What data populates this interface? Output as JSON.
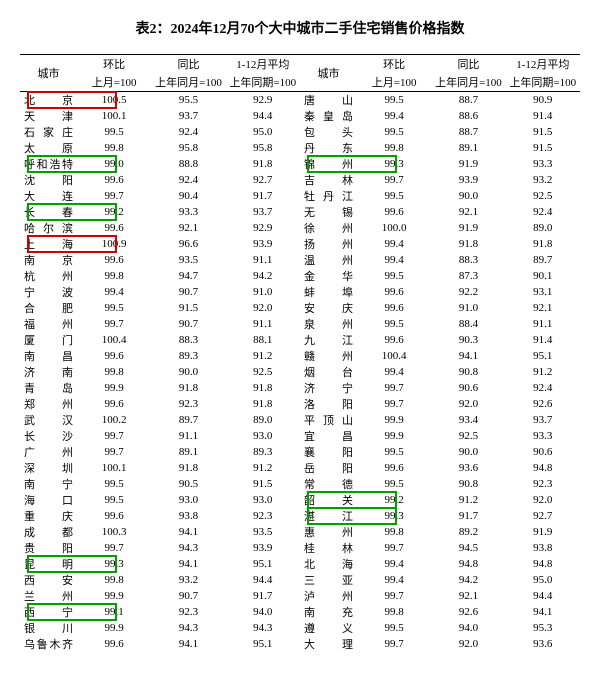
{
  "title": "表2：2024年12月70个大中城市二手住宅销售价格指数",
  "headers": {
    "city": "城市",
    "mom": "环比",
    "yoy": "同比",
    "avg": "1-12月平均",
    "mom_sub": "上月=100",
    "yoy_sub": "上年同月=100",
    "avg_sub": "上年同期=100"
  },
  "rows": [
    {
      "l": {
        "city": "北　京",
        "mom": "100.5",
        "yoy": "95.5",
        "avg": "92.9",
        "hl": "red"
      },
      "r": {
        "city": "唐　山",
        "mom": "99.5",
        "yoy": "88.7",
        "avg": "90.9"
      }
    },
    {
      "l": {
        "city": "天　津",
        "mom": "100.1",
        "yoy": "93.7",
        "avg": "94.4"
      },
      "r": {
        "city": "秦皇岛",
        "mom": "99.4",
        "yoy": "88.6",
        "avg": "91.4"
      }
    },
    {
      "l": {
        "city": "石家庄",
        "mom": "99.5",
        "yoy": "92.4",
        "avg": "95.0"
      },
      "r": {
        "city": "包　头",
        "mom": "99.5",
        "yoy": "88.7",
        "avg": "91.5"
      }
    },
    {
      "l": {
        "city": "太　原",
        "mom": "99.8",
        "yoy": "95.8",
        "avg": "95.8"
      },
      "r": {
        "city": "丹　东",
        "mom": "99.8",
        "yoy": "89.1",
        "avg": "91.5"
      }
    },
    {
      "l": {
        "city": "呼和浩特",
        "mom": "99.0",
        "yoy": "88.8",
        "avg": "91.8",
        "hl": "green"
      },
      "r": {
        "city": "锦　州",
        "mom": "99.3",
        "yoy": "91.9",
        "avg": "93.3",
        "hl": "green"
      }
    },
    {
      "l": {
        "city": "沈　阳",
        "mom": "99.6",
        "yoy": "92.4",
        "avg": "92.7"
      },
      "r": {
        "city": "吉　林",
        "mom": "99.7",
        "yoy": "93.9",
        "avg": "93.2"
      }
    },
    {
      "l": {
        "city": "大　连",
        "mom": "99.7",
        "yoy": "90.4",
        "avg": "91.7"
      },
      "r": {
        "city": "牡丹江",
        "mom": "99.5",
        "yoy": "90.0",
        "avg": "92.5"
      }
    },
    {
      "l": {
        "city": "长　春",
        "mom": "99.2",
        "yoy": "93.3",
        "avg": "93.7",
        "hl": "green"
      },
      "r": {
        "city": "无　锡",
        "mom": "99.6",
        "yoy": "92.1",
        "avg": "92.4"
      }
    },
    {
      "l": {
        "city": "哈尔滨",
        "mom": "99.6",
        "yoy": "92.1",
        "avg": "92.9"
      },
      "r": {
        "city": "徐　州",
        "mom": "100.0",
        "yoy": "91.9",
        "avg": "89.0"
      }
    },
    {
      "l": {
        "city": "上　海",
        "mom": "100.9",
        "yoy": "96.6",
        "avg": "93.9",
        "hl": "red"
      },
      "r": {
        "city": "扬　州",
        "mom": "99.4",
        "yoy": "91.8",
        "avg": "91.8"
      }
    },
    {
      "l": {
        "city": "南　京",
        "mom": "99.6",
        "yoy": "93.5",
        "avg": "91.1"
      },
      "r": {
        "city": "温　州",
        "mom": "99.4",
        "yoy": "88.3",
        "avg": "89.7"
      }
    },
    {
      "l": {
        "city": "杭　州",
        "mom": "99.8",
        "yoy": "94.7",
        "avg": "94.2"
      },
      "r": {
        "city": "金　华",
        "mom": "99.5",
        "yoy": "87.3",
        "avg": "90.1"
      }
    },
    {
      "l": {
        "city": "宁　波",
        "mom": "99.4",
        "yoy": "90.7",
        "avg": "91.0"
      },
      "r": {
        "city": "蚌　埠",
        "mom": "99.6",
        "yoy": "92.2",
        "avg": "93.1"
      }
    },
    {
      "l": {
        "city": "合　肥",
        "mom": "99.5",
        "yoy": "91.5",
        "avg": "92.0"
      },
      "r": {
        "city": "安　庆",
        "mom": "99.6",
        "yoy": "91.0",
        "avg": "92.1"
      }
    },
    {
      "l": {
        "city": "福　州",
        "mom": "99.7",
        "yoy": "90.7",
        "avg": "91.1"
      },
      "r": {
        "city": "泉　州",
        "mom": "99.5",
        "yoy": "88.4",
        "avg": "91.1"
      }
    },
    {
      "l": {
        "city": "厦　门",
        "mom": "100.4",
        "yoy": "88.3",
        "avg": "88.1"
      },
      "r": {
        "city": "九　江",
        "mom": "99.6",
        "yoy": "90.3",
        "avg": "91.4"
      }
    },
    {
      "l": {
        "city": "南　昌",
        "mom": "99.6",
        "yoy": "89.3",
        "avg": "91.2"
      },
      "r": {
        "city": "赣　州",
        "mom": "100.4",
        "yoy": "94.1",
        "avg": "95.1"
      }
    },
    {
      "l": {
        "city": "济　南",
        "mom": "99.8",
        "yoy": "90.0",
        "avg": "92.5"
      },
      "r": {
        "city": "烟　台",
        "mom": "99.4",
        "yoy": "90.8",
        "avg": "91.2"
      }
    },
    {
      "l": {
        "city": "青　岛",
        "mom": "99.9",
        "yoy": "91.8",
        "avg": "91.8"
      },
      "r": {
        "city": "济　宁",
        "mom": "99.7",
        "yoy": "90.6",
        "avg": "92.4"
      }
    },
    {
      "l": {
        "city": "郑　州",
        "mom": "99.6",
        "yoy": "92.3",
        "avg": "91.8"
      },
      "r": {
        "city": "洛　阳",
        "mom": "99.7",
        "yoy": "92.0",
        "avg": "92.6"
      }
    },
    {
      "l": {
        "city": "武　汉",
        "mom": "100.2",
        "yoy": "89.7",
        "avg": "89.0"
      },
      "r": {
        "city": "平顶山",
        "mom": "99.9",
        "yoy": "93.4",
        "avg": "93.7"
      }
    },
    {
      "l": {
        "city": "长　沙",
        "mom": "99.7",
        "yoy": "91.1",
        "avg": "93.0"
      },
      "r": {
        "city": "宜　昌",
        "mom": "99.9",
        "yoy": "92.5",
        "avg": "93.3"
      }
    },
    {
      "l": {
        "city": "广　州",
        "mom": "99.7",
        "yoy": "89.1",
        "avg": "89.3"
      },
      "r": {
        "city": "襄　阳",
        "mom": "99.5",
        "yoy": "90.0",
        "avg": "90.6"
      }
    },
    {
      "l": {
        "city": "深　圳",
        "mom": "100.1",
        "yoy": "91.8",
        "avg": "91.2"
      },
      "r": {
        "city": "岳　阳",
        "mom": "99.6",
        "yoy": "93.6",
        "avg": "94.8"
      }
    },
    {
      "l": {
        "city": "南　宁",
        "mom": "99.5",
        "yoy": "90.5",
        "avg": "91.5"
      },
      "r": {
        "city": "常　德",
        "mom": "99.5",
        "yoy": "90.8",
        "avg": "92.3"
      }
    },
    {
      "l": {
        "city": "海　口",
        "mom": "99.5",
        "yoy": "93.0",
        "avg": "93.0"
      },
      "r": {
        "city": "韶　关",
        "mom": "99.2",
        "yoy": "91.2",
        "avg": "92.0",
        "hl": "green"
      }
    },
    {
      "l": {
        "city": "重　庆",
        "mom": "99.6",
        "yoy": "93.8",
        "avg": "92.3"
      },
      "r": {
        "city": "湛　江",
        "mom": "99.3",
        "yoy": "91.7",
        "avg": "92.7",
        "hl": "green"
      }
    },
    {
      "l": {
        "city": "成　都",
        "mom": "100.3",
        "yoy": "94.1",
        "avg": "93.5"
      },
      "r": {
        "city": "惠　州",
        "mom": "99.8",
        "yoy": "89.2",
        "avg": "91.9"
      }
    },
    {
      "l": {
        "city": "贵　阳",
        "mom": "99.7",
        "yoy": "94.3",
        "avg": "93.9"
      },
      "r": {
        "city": "桂　林",
        "mom": "99.7",
        "yoy": "94.5",
        "avg": "93.8"
      }
    },
    {
      "l": {
        "city": "昆　明",
        "mom": "99.3",
        "yoy": "94.1",
        "avg": "95.1",
        "hl": "green"
      },
      "r": {
        "city": "北　海",
        "mom": "99.4",
        "yoy": "94.8",
        "avg": "94.8"
      }
    },
    {
      "l": {
        "city": "西　安",
        "mom": "99.8",
        "yoy": "93.2",
        "avg": "94.4"
      },
      "r": {
        "city": "三　亚",
        "mom": "99.4",
        "yoy": "94.2",
        "avg": "95.0"
      }
    },
    {
      "l": {
        "city": "兰　州",
        "mom": "99.9",
        "yoy": "90.7",
        "avg": "91.7"
      },
      "r": {
        "city": "泸　州",
        "mom": "99.7",
        "yoy": "92.1",
        "avg": "94.4"
      }
    },
    {
      "l": {
        "city": "西　宁",
        "mom": "99.1",
        "yoy": "92.3",
        "avg": "94.0",
        "hl": "green"
      },
      "r": {
        "city": "南　充",
        "mom": "99.8",
        "yoy": "92.6",
        "avg": "94.1"
      }
    },
    {
      "l": {
        "city": "银　川",
        "mom": "99.9",
        "yoy": "94.3",
        "avg": "94.3"
      },
      "r": {
        "city": "遵　义",
        "mom": "99.5",
        "yoy": "94.0",
        "avg": "95.3"
      }
    },
    {
      "l": {
        "city": "乌鲁木齐",
        "mom": "99.6",
        "yoy": "94.1",
        "avg": "95.1"
      },
      "r": {
        "city": "大　理",
        "mom": "99.7",
        "yoy": "92.0",
        "avg": "93.6"
      }
    }
  ]
}
